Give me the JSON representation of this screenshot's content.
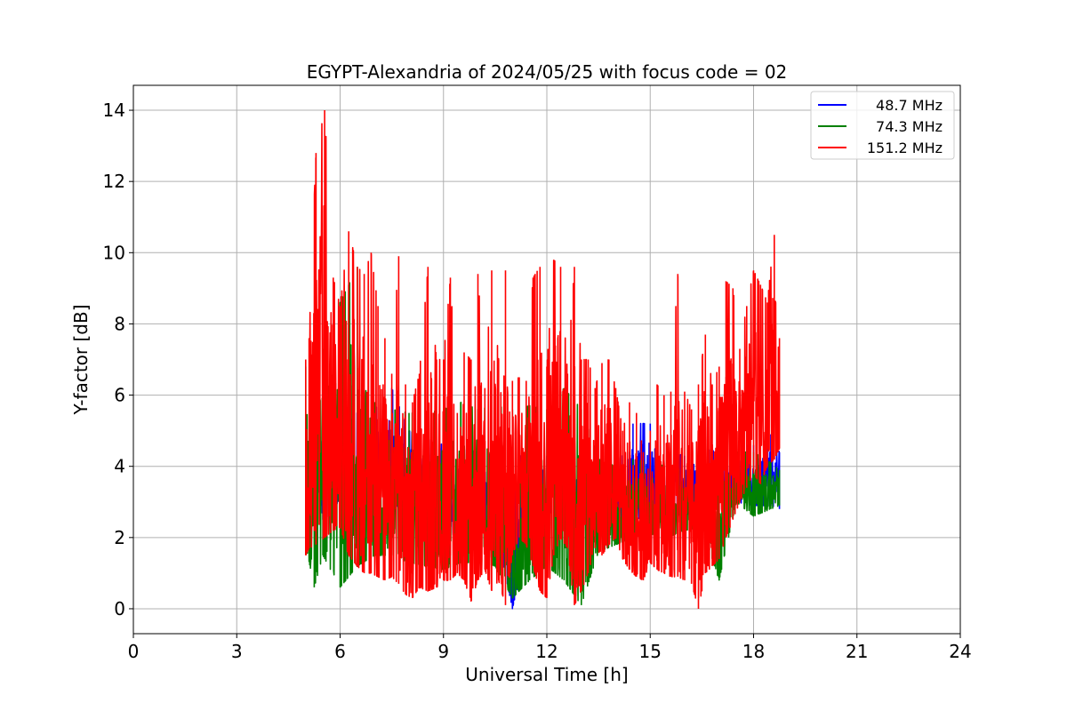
{
  "chart_data": {
    "type": "line",
    "title": "EGYPT-Alexandria of 2024/05/25 with focus code = 02",
    "xlabel": "Universal Time [h]",
    "ylabel": "Y-factor [dB]",
    "xlim": [
      0,
      24
    ],
    "ylim": [
      -0.7,
      14.7
    ],
    "xticks": [
      0,
      3,
      6,
      9,
      12,
      15,
      18,
      21,
      24
    ],
    "yticks": [
      0,
      2,
      4,
      6,
      8,
      10,
      12,
      14
    ],
    "grid": true,
    "legend_position": "top-right",
    "series": [
      {
        "name": "48.7 MHz",
        "color": "#0000ff",
        "envelope_x": [
          5.0,
          5.25,
          5.5,
          6.0,
          6.5,
          7.0,
          7.5,
          8.0,
          8.5,
          9.0,
          9.5,
          10.0,
          10.5,
          11.0,
          11.5,
          12.0,
          12.5,
          13.0,
          13.5,
          14.0,
          14.5,
          15.0,
          15.5,
          16.0,
          16.5,
          17.0,
          17.5,
          18.0,
          18.5,
          18.75
        ],
        "envelope_low": [
          2.6,
          2.4,
          2.5,
          2.6,
          2.8,
          2.9,
          3.0,
          2.6,
          2.3,
          2.2,
          2.0,
          2.2,
          2.4,
          0.0,
          2.1,
          2.7,
          2.7,
          2.6,
          2.5,
          2.4,
          2.5,
          2.6,
          2.7,
          2.6,
          2.9,
          3.0,
          3.0,
          2.9,
          2.9,
          2.8
        ],
        "envelope_high": [
          4.6,
          5.0,
          5.3,
          5.5,
          5.5,
          5.6,
          6.2,
          5.0,
          4.8,
          4.6,
          4.5,
          4.4,
          4.3,
          4.2,
          4.4,
          4.3,
          4.4,
          4.3,
          4.0,
          3.9,
          5.2,
          5.2,
          4.4,
          4.3,
          4.5,
          4.4,
          4.6,
          4.6,
          4.9,
          4.4
        ]
      },
      {
        "name": "74.3 MHz",
        "color": "#008000",
        "envelope_x": [
          5.0,
          5.25,
          5.5,
          6.0,
          6.5,
          7.0,
          7.5,
          8.0,
          8.5,
          9.0,
          9.5,
          10.0,
          10.5,
          11.0,
          11.5,
          12.0,
          12.5,
          13.0,
          13.5,
          14.0,
          14.5,
          15.0,
          15.5,
          16.0,
          16.5,
          17.0,
          17.5,
          18.0,
          18.5,
          18.75
        ],
        "envelope_low": [
          1.8,
          0.6,
          1.5,
          0.6,
          1.2,
          1.5,
          1.5,
          1.3,
          1.2,
          1.1,
          1.3,
          1.3,
          1.2,
          0.3,
          0.8,
          1.2,
          0.8,
          0.1,
          1.6,
          1.8,
          2.0,
          2.1,
          2.0,
          2.2,
          2.3,
          0.8,
          3.0,
          2.6,
          2.8,
          2.9
        ],
        "envelope_high": [
          6.8,
          7.5,
          7.3,
          8.6,
          9.6,
          5.8,
          5.6,
          5.5,
          5.5,
          5.6,
          5.8,
          5.6,
          5.7,
          5.6,
          5.7,
          5.6,
          6.2,
          5.6,
          4.2,
          4.0,
          4.2,
          4.1,
          4.0,
          3.9,
          3.8,
          4.1,
          4.4,
          4.4,
          4.1,
          3.9
        ]
      },
      {
        "name": "151.2 MHz",
        "color": "#ff0000",
        "envelope_x": [
          5.0,
          5.1,
          5.3,
          5.55,
          5.8,
          6.0,
          6.25,
          6.5,
          6.7,
          6.9,
          7.1,
          7.3,
          7.5,
          7.7,
          7.9,
          8.1,
          8.3,
          8.55,
          8.8,
          9.0,
          9.2,
          9.4,
          9.6,
          9.8,
          10.0,
          10.2,
          10.4,
          10.6,
          10.8,
          11.0,
          11.2,
          11.4,
          11.6,
          11.8,
          12.0,
          12.2,
          12.4,
          12.6,
          12.8,
          13.0,
          13.2,
          13.4,
          13.6,
          13.8,
          14.0,
          14.2,
          14.4,
          14.6,
          14.8,
          15.0,
          15.2,
          15.4,
          15.6,
          15.8,
          16.0,
          16.2,
          16.4,
          16.6,
          16.8,
          17.0,
          17.2,
          17.4,
          17.6,
          17.8,
          18.0,
          18.2,
          18.4,
          18.6,
          18.75
        ],
        "envelope_low": [
          1.5,
          1.7,
          1.8,
          2.0,
          2.2,
          2.3,
          1.5,
          1.2,
          1.0,
          1.0,
          0.9,
          0.8,
          0.9,
          0.7,
          0.4,
          0.3,
          0.6,
          0.5,
          0.6,
          0.8,
          0.8,
          1.0,
          0.8,
          0.2,
          0.8,
          1.1,
          0.5,
          0.8,
          0.1,
          1.5,
          2.0,
          1.8,
          1.2,
          0.5,
          0.3,
          1.5,
          2.0,
          1.7,
          0.1,
          0.5,
          1.0,
          1.7,
          1.5,
          1.8,
          2.0,
          1.4,
          1.1,
          0.9,
          0.8,
          1.3,
          1.1,
          1.0,
          0.9,
          0.9,
          0.8,
          0.7,
          0.0,
          1.0,
          1.2,
          1.4,
          2.0,
          2.5,
          3.0,
          3.4,
          3.8,
          3.5,
          4.0,
          4.2,
          4.5
        ],
        "envelope_high": [
          7.0,
          7.6,
          12.8,
          14.0,
          9.3,
          8.5,
          10.6,
          9.6,
          9.4,
          10.0,
          8.5,
          7.6,
          6.6,
          9.9,
          6.3,
          5.8,
          6.6,
          9.6,
          7.0,
          7.0,
          9.3,
          5.5,
          7.2,
          7.0,
          9.4,
          6.2,
          9.5,
          7.0,
          9.5,
          6.4,
          6.5,
          6.4,
          9.3,
          9.6,
          6.8,
          9.8,
          9.6,
          6.6,
          9.6,
          7.0,
          7.0,
          6.2,
          6.9,
          7.0,
          6.2,
          5.0,
          5.8,
          5.5,
          4.4,
          5.0,
          6.3,
          6.0,
          6.1,
          9.4,
          6.1,
          5.6,
          6.3,
          7.7,
          6.3,
          6.8,
          9.2,
          9.0,
          7.3,
          8.5,
          9.5,
          9.1,
          8.6,
          10.5,
          7.6
        ]
      }
    ]
  }
}
